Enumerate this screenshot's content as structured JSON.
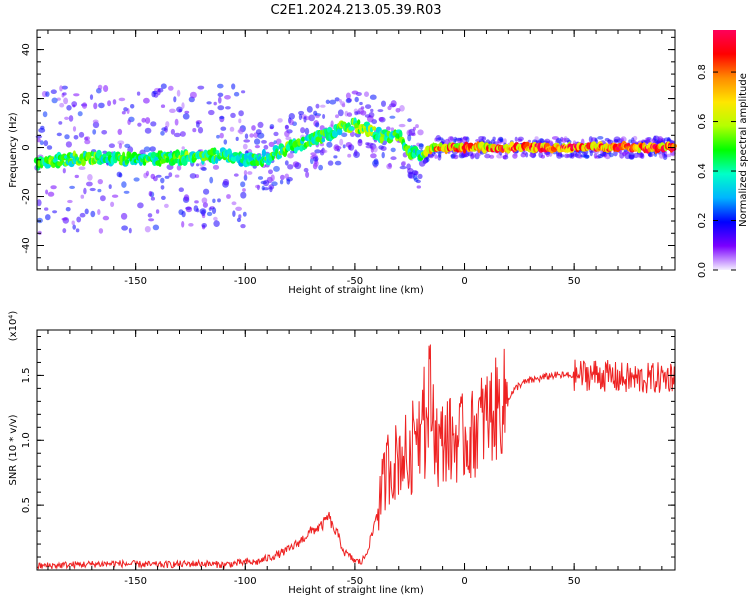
{
  "figure": {
    "title": "C2E1.2024.213.05.39.R03"
  },
  "chart_data": [
    {
      "type": "heatmap",
      "title": "C2E1.2024.213.05.39.R03",
      "xlabel": "Height of straight line (km)",
      "ylabel": "Frequency (Hz)",
      "xlim": [
        -195,
        96
      ],
      "ylim": [
        -50,
        48
      ],
      "x_ticks": [
        "-150",
        "-100",
        "-50",
        "0",
        "50"
      ],
      "y_ticks": [
        "40",
        "20",
        "0",
        "-20",
        "-40"
      ],
      "colorbar": {
        "label": "Normalized spectral amplitude",
        "range": [
          0,
          0.97
        ],
        "ticks": [
          "0.0",
          "0.2",
          "0.4",
          "0.6",
          "0.8"
        ],
        "colors": [
          "#f5f0ff",
          "#7b00ff",
          "#0000ff",
          "#00b4ff",
          "#00ffc8",
          "#00ff00",
          "#b4ff00",
          "#ffe600",
          "#ff8c00",
          "#ff0000",
          "#ff005a"
        ]
      },
      "ridge": {
        "x": [
          -195,
          -170,
          -150,
          -130,
          -110,
          -100,
          -90,
          -80,
          -70,
          -60,
          -55,
          -50,
          -45,
          -40,
          -35,
          -30,
          -25,
          -20,
          -15,
          -10,
          0,
          10,
          20,
          50,
          96
        ],
        "freq": [
          -6,
          -4,
          -5,
          -4,
          -3,
          -5,
          -4,
          0,
          3,
          6,
          8,
          9,
          8,
          6,
          4,
          6,
          -2,
          -3,
          0,
          0,
          0,
          0,
          0,
          0,
          0
        ],
        "amplitude": [
          0.55,
          0.55,
          0.5,
          0.55,
          0.5,
          0.45,
          0.5,
          0.55,
          0.5,
          0.5,
          0.55,
          0.6,
          0.6,
          0.55,
          0.5,
          0.55,
          0.5,
          0.45,
          0.75,
          0.85,
          0.85,
          0.8,
          0.95,
          0.95,
          0.95
        ]
      }
    },
    {
      "type": "line",
      "xlabel": "Height of straight line (km)",
      "ylabel": "SNR (10 * v/v)",
      "scale_label": "(x10⁴)",
      "xlim": [
        -195,
        96
      ],
      "ylim": [
        0,
        1.85
      ],
      "x_ticks": [
        "-150",
        "-100",
        "-50",
        "0",
        "50"
      ],
      "y_ticks": [
        "1.5",
        "1.0",
        "0.5"
      ],
      "color": "#ee2222",
      "series": [
        {
          "x": [
            -195,
            -180,
            -160,
            -140,
            -120,
            -110,
            -100,
            -95,
            -90,
            -85,
            -80,
            -75,
            -70,
            -65,
            -62,
            -60,
            -58,
            -55,
            -50,
            -47,
            -45,
            -42,
            -40,
            -37,
            -35,
            -32,
            -30,
            -27,
            -25,
            -22,
            -20,
            -19,
            -18,
            -16,
            -14,
            -12,
            -10,
            -8,
            -6,
            -4,
            -2,
            0,
            3,
            6,
            10,
            15,
            20,
            25,
            30,
            40,
            50,
            60,
            70,
            80,
            90,
            96
          ],
          "y": [
            0.03,
            0.04,
            0.05,
            0.04,
            0.05,
            0.04,
            0.06,
            0.06,
            0.09,
            0.12,
            0.16,
            0.22,
            0.3,
            0.34,
            0.42,
            0.32,
            0.28,
            0.14,
            0.07,
            0.06,
            0.12,
            0.28,
            0.45,
            0.65,
            0.8,
            0.82,
            0.88,
            0.9,
            0.78,
            1.2,
            1.05,
            1.8,
            0.95,
            1.4,
            1.15,
            0.95,
            0.98,
            1.05,
            0.98,
            1.02,
            1.0,
            1.02,
            1.02,
            1.12,
            1.18,
            1.24,
            1.33,
            1.43,
            1.46,
            1.5,
            1.5,
            1.51,
            1.48,
            1.47,
            1.48,
            1.5
          ]
        }
      ]
    }
  ]
}
